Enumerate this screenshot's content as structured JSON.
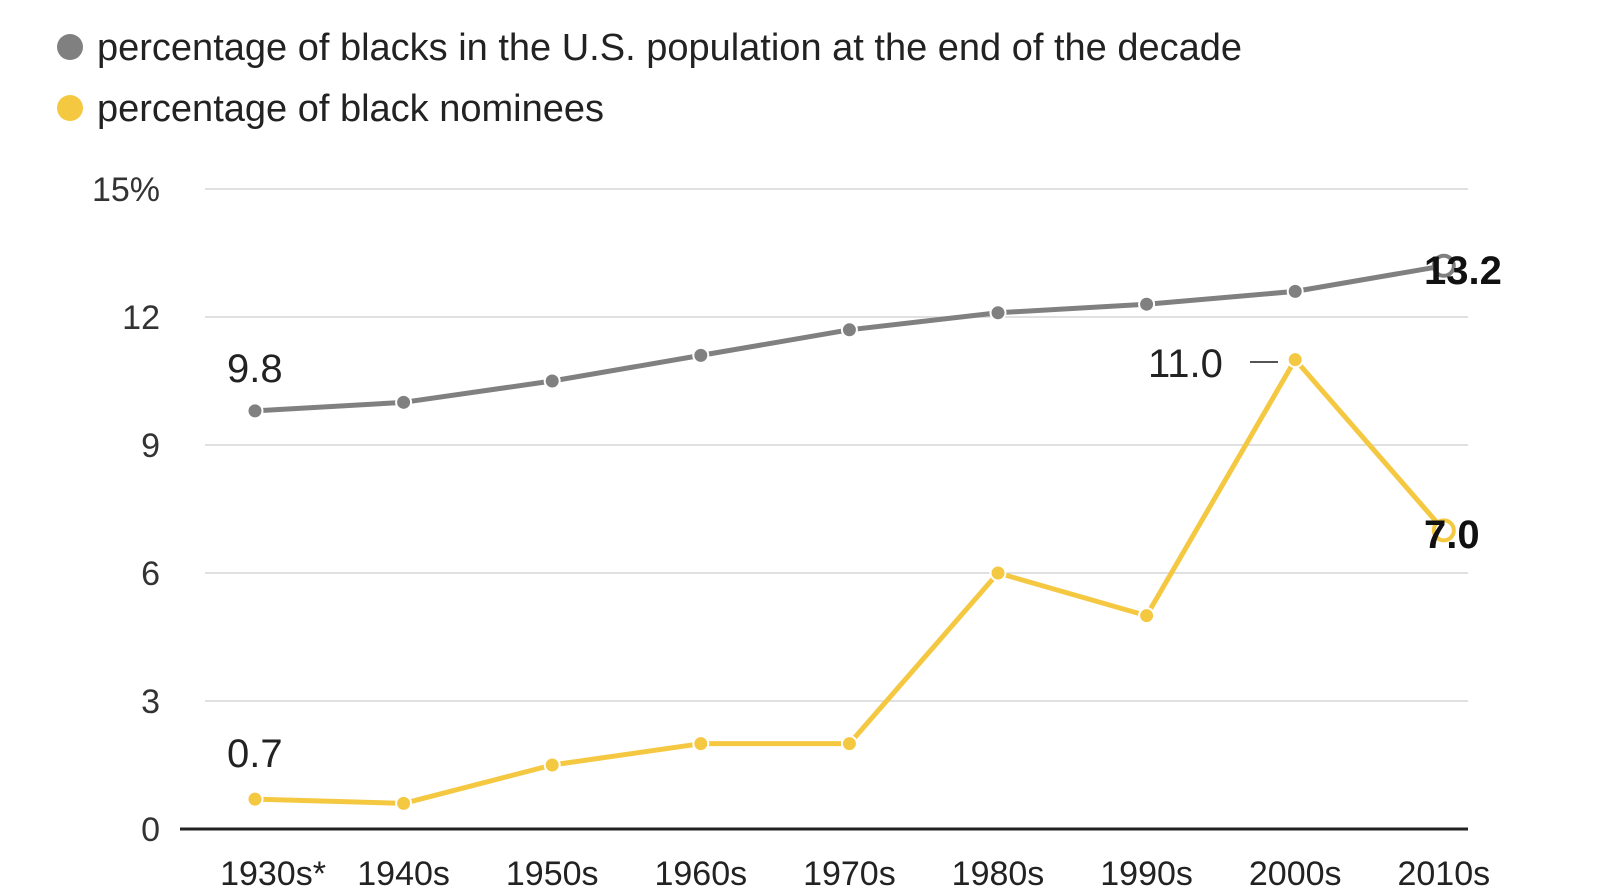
{
  "legend": [
    {
      "label": "percentage of blacks in the U.S. population at the end of the decade",
      "color": "#808080"
    },
    {
      "label": "percentage of black nominees",
      "color": "#f5c842"
    }
  ],
  "chart_data": {
    "type": "line",
    "categories": [
      "1930s*",
      "1940s",
      "1950s",
      "1960s",
      "1970s",
      "1980s",
      "1990s",
      "2000s",
      "2010s"
    ],
    "series": [
      {
        "name": "percentage of blacks in the U.S. population at the end of the decade",
        "color": "#808080",
        "values": [
          9.8,
          10.0,
          10.5,
          11.1,
          11.7,
          12.1,
          12.3,
          12.6,
          13.2
        ]
      },
      {
        "name": "percentage of black nominees",
        "color": "#f5c842",
        "values": [
          0.7,
          0.6,
          1.5,
          2.0,
          2.0,
          6.0,
          5.0,
          11.0,
          7.0
        ]
      }
    ],
    "ylim": [
      0,
      15
    ],
    "yticks": [
      0,
      3,
      6,
      9,
      12,
      15
    ],
    "ytick_labels": [
      "0",
      "3",
      "6",
      "9",
      "12",
      "15%"
    ],
    "annotations": {
      "pop_start": "9.8",
      "pop_end": "13.2",
      "nom_start": "0.7",
      "nom_peak": "11.0",
      "nom_end": "7.0"
    },
    "grid": true
  }
}
